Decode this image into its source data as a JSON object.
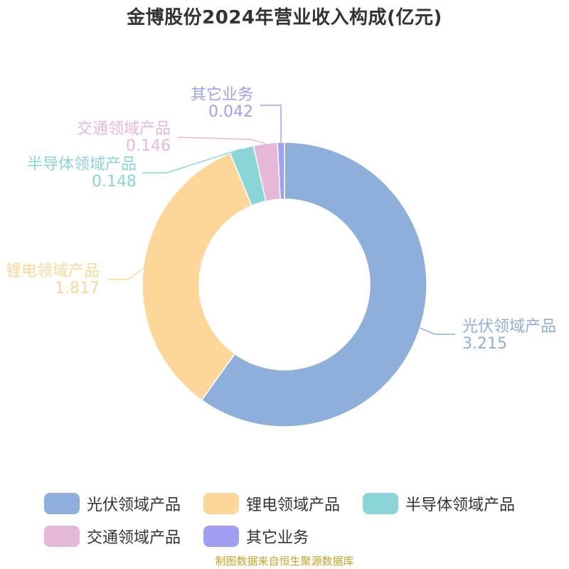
{
  "title": "金博股份2024年营业收入构成(亿元)",
  "source": "制图数据来自恒生聚源数据库",
  "chart_data": {
    "type": "pie",
    "variant": "donut",
    "title": "金博股份2024年营业收入构成(亿元)",
    "categories": [
      "光伏领域产品",
      "锂电领域产品",
      "半导体领域产品",
      "交通领域产品",
      "其它业务"
    ],
    "values": [
      3.215,
      1.817,
      0.148,
      0.146,
      0.042
    ],
    "value_labels": [
      "3.215",
      "1.817",
      "0.148",
      "0.146",
      "0.042"
    ],
    "colors": [
      "#8eaedb",
      "#fdd79a",
      "#89d5d7",
      "#e6b8d8",
      "#a09ff2"
    ],
    "legend_position": "bottom",
    "legend": [
      {
        "label": "光伏领域产品",
        "color": "#8eaedb"
      },
      {
        "label": "锂电领域产品",
        "color": "#fdd79a"
      },
      {
        "label": "半导体领域产品",
        "color": "#89d5d7"
      },
      {
        "label": "交通领域产品",
        "color": "#e6b8d8"
      },
      {
        "label": "其它业务",
        "color": "#a09ff2"
      }
    ]
  }
}
